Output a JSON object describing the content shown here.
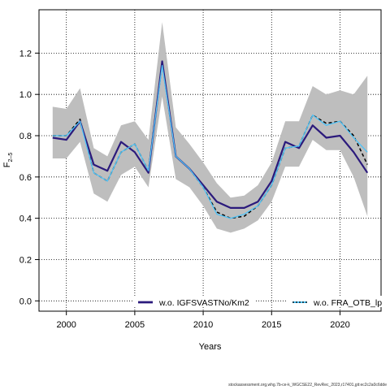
{
  "chart_data": {
    "type": "line",
    "xlabel": "Years",
    "ylabel": "F",
    "ylabel_sub": "2–5",
    "xlim": [
      1998,
      2023
    ],
    "ylim": [
      -0.05,
      1.41
    ],
    "xticks": [
      2000,
      2005,
      2010,
      2015,
      2020
    ],
    "yticks": [
      0.0,
      0.2,
      0.4,
      0.6,
      0.8,
      1.0,
      1.2
    ],
    "ytick_labels": [
      "0.0",
      "0.2",
      "0.4",
      "0.6",
      "0.8",
      "1.0",
      "1.2"
    ],
    "grid": true,
    "x": [
      1999,
      2000,
      2001,
      2002,
      2003,
      2004,
      2005,
      2006,
      2007,
      2008,
      2009,
      2010,
      2011,
      2012,
      2013,
      2014,
      2015,
      2016,
      2017,
      2018,
      2019,
      2020,
      2021,
      2022
    ],
    "band": {
      "upper": [
        0.94,
        0.93,
        1.03,
        0.74,
        0.7,
        0.85,
        0.87,
        0.78,
        1.35,
        0.84,
        0.76,
        0.67,
        0.57,
        0.5,
        0.51,
        0.56,
        0.67,
        0.87,
        0.87,
        1.04,
        1.0,
        1.02,
        1.0,
        1.09
      ],
      "lower": [
        0.69,
        0.69,
        0.77,
        0.52,
        0.48,
        0.61,
        0.65,
        0.55,
        0.99,
        0.59,
        0.55,
        0.46,
        0.35,
        0.33,
        0.35,
        0.39,
        0.48,
        0.65,
        0.65,
        0.78,
        0.73,
        0.73,
        0.6,
        0.41
      ],
      "color": "#bebebe"
    },
    "series": [
      {
        "values": [
          0.8,
          0.8,
          0.88,
          0.62,
          0.58,
          0.72,
          0.76,
          0.63,
          1.16,
          0.7,
          0.64,
          0.55,
          0.43,
          0.4,
          0.41,
          0.46,
          0.56,
          0.74,
          0.75,
          0.9,
          0.86,
          0.87,
          0.8,
          0.66
        ],
        "color": "#000000",
        "dashed": true,
        "width": 1.5
      },
      {
        "name": "w.o. IGFSVASTNo/Km2",
        "values": [
          0.79,
          0.78,
          0.87,
          0.66,
          0.63,
          0.77,
          0.72,
          0.62,
          1.16,
          0.7,
          0.64,
          0.56,
          0.48,
          0.45,
          0.45,
          0.48,
          0.58,
          0.77,
          0.74,
          0.85,
          0.79,
          0.8,
          0.72,
          0.62
        ],
        "color": "#2b1a7c",
        "dashed": false,
        "width": 2.2
      },
      {
        "name": "w.o. FRA_OTB_lp",
        "values": [
          0.8,
          0.8,
          0.87,
          0.62,
          0.58,
          0.72,
          0.76,
          0.63,
          1.14,
          0.7,
          0.64,
          0.55,
          0.42,
          0.4,
          0.42,
          0.46,
          0.56,
          0.74,
          0.75,
          0.9,
          0.85,
          0.87,
          0.79,
          0.72
        ],
        "color": "#4fc3f7",
        "dashed": false,
        "width": 1.3
      }
    ],
    "legend_placement": "bottom"
  },
  "footer_text": "stockassessment.org,whg.7b-ce-k_WGCSE22_RevRec_2023,r17401,git:ec2c2a0c6dde"
}
